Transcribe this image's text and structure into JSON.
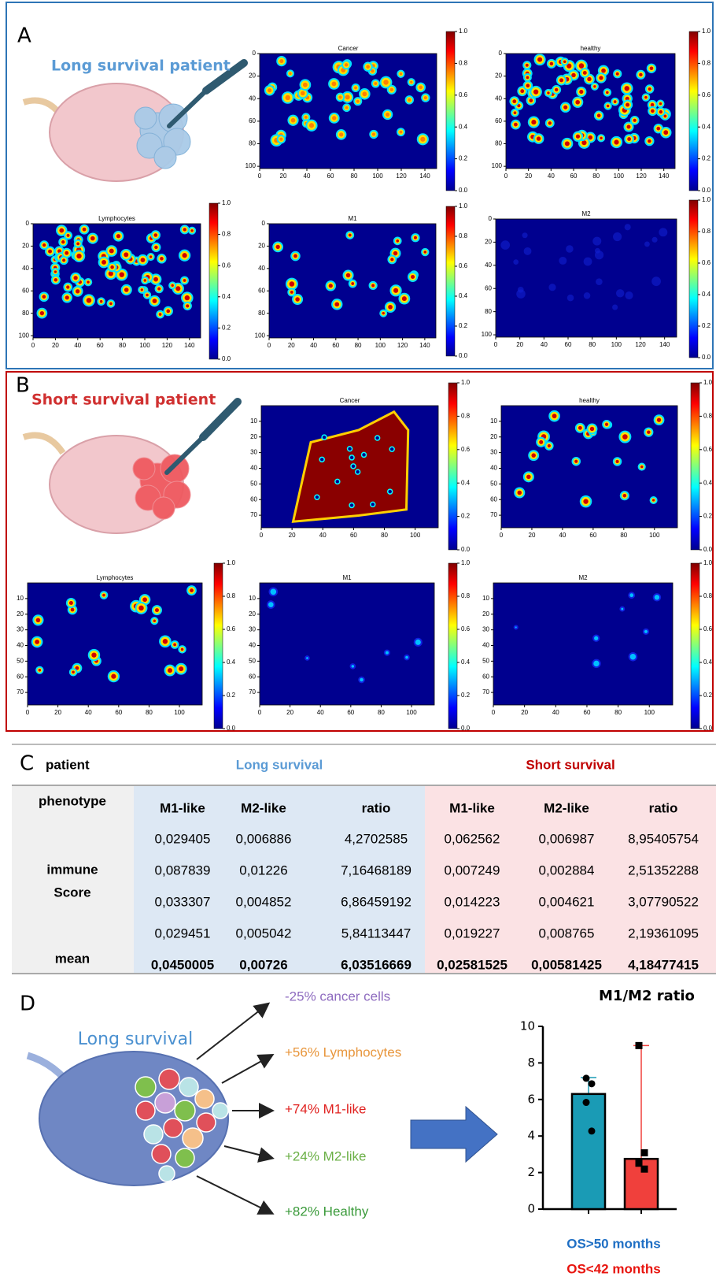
{
  "panel_a": {
    "label": "A",
    "caption": "Long survival patient",
    "maps": [
      "Cancer",
      "healthy",
      "Lymphocytes",
      "M1",
      "M2"
    ],
    "xlim": [
      0,
      150
    ],
    "ylim": [
      0,
      102
    ],
    "xticks": [
      0,
      20,
      40,
      60,
      80,
      100,
      120,
      140
    ],
    "yticks": [
      0,
      20,
      40,
      60,
      80,
      100
    ],
    "cbar_ticks": [
      {
        "value": 0,
        "label": "0.0"
      },
      {
        "value": 0.2,
        "label": "0.2"
      },
      {
        "value": 0.4,
        "label": "0.4"
      },
      {
        "value": 0.6,
        "label": "0.6"
      },
      {
        "value": 0.8,
        "label": "0.8"
      },
      {
        "value": 1,
        "label": "1.0"
      }
    ]
  },
  "panel_b": {
    "label": "B",
    "caption": "Short survival patient",
    "maps": [
      "Cancer",
      "healthy",
      "Lymphocytes",
      "M1",
      "M2"
    ],
    "xlim": [
      0,
      115
    ],
    "ylim": [
      0,
      78
    ],
    "xticks": [
      0,
      20,
      40,
      60,
      80,
      100
    ],
    "yticks": [
      10,
      20,
      30,
      40,
      50,
      60,
      70
    ],
    "cbar_ticks": [
      {
        "value": 0,
        "label": "0.0"
      },
      {
        "value": 0.2,
        "label": "0.2"
      },
      {
        "value": 0.4,
        "label": "0.4"
      },
      {
        "value": 0.6,
        "label": "0.6"
      },
      {
        "value": 0.8,
        "label": "0.8"
      },
      {
        "value": 1,
        "label": "1.0"
      }
    ]
  },
  "panel_c": {
    "label": "C",
    "corner": "patient",
    "groups": [
      "Long survival",
      "Short survival"
    ],
    "phenotype": "phenotype",
    "columns": [
      "M1-like",
      "M2-like",
      "ratio",
      "M1-like",
      "M2-like",
      "ratio"
    ],
    "score_label": [
      "immune",
      "Score"
    ],
    "rows": [
      [
        "0,029405",
        "0,006886",
        "4,2702585",
        "0,062562",
        "0,006987",
        "8,95405754"
      ],
      [
        "0,087839",
        "0,01226",
        "7,16468189",
        "0,007249",
        "0,002884",
        "2,51352288"
      ],
      [
        "0,033307",
        "0,004852",
        "6,86459192",
        "0,014223",
        "0,004621",
        "3,07790522"
      ],
      [
        "0,029451",
        "0,005042",
        "5,84113447",
        "0,019227",
        "0,008765",
        "2,19361095"
      ]
    ],
    "mean_label": "mean",
    "mean": [
      "0,0450005",
      "0,00726",
      "6,03516669",
      "0,02581525",
      "0,00581425",
      "4,18477415"
    ]
  },
  "panel_d": {
    "label": "D",
    "heading": "Long survival",
    "changes": [
      "-25% cancer cells",
      "+56% Lymphocytes",
      "+74% M1-like",
      "+24% M2-like",
      "+82% Healthy"
    ],
    "change_colors": [
      "#8e6bbf",
      "#e8963c",
      "#e0201e",
      "#6aaf45",
      "#3a9a3a"
    ]
  },
  "chart_data": {
    "type": "bar",
    "title": "M1/M2 ratio",
    "categories": [
      "OS>50 months",
      "OS<42 months"
    ],
    "values": [
      6.3,
      2.75
    ],
    "errors": [
      0.9,
      6.2
    ],
    "points": [
      [
        7.16,
        6.86,
        5.84,
        4.27
      ],
      [
        8.95,
        3.08,
        2.51,
        2.19
      ]
    ],
    "colors": [
      "#1a9bb5",
      "#f0403c"
    ],
    "label_colors": [
      "#1f6fc4",
      "#e8150f"
    ],
    "ylim": [
      0,
      10
    ],
    "yticks": [
      0,
      2,
      4,
      6,
      8,
      10
    ]
  }
}
